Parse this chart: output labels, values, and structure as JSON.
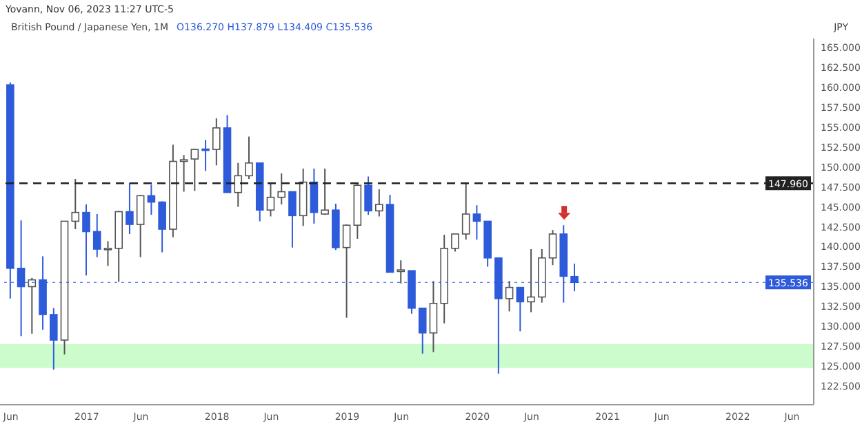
{
  "chart_data": {
    "type": "candlestick",
    "title": "British Pound / Japanese Yen, 1M",
    "ylabel": "JPY",
    "annotations": [
      "Yovann, Nov 06, 2023 11:27 UTC-5",
      "O136.270 H137.879 L134.409 C135.536"
    ],
    "x": [
      "2016-06",
      "2016-07",
      "2016-08",
      "2016-09",
      "2016-10",
      "2016-11",
      "2016-12",
      "2017-01",
      "2017-02",
      "2017-03",
      "2017-04",
      "2017-05",
      "2017-06",
      "2017-07",
      "2017-08",
      "2017-09",
      "2017-10",
      "2017-11",
      "2017-12",
      "2018-01",
      "2018-02",
      "2018-03",
      "2018-04",
      "2018-05",
      "2018-06",
      "2018-07",
      "2018-08",
      "2018-09",
      "2018-10",
      "2018-11",
      "2018-12",
      "2019-01",
      "2019-02",
      "2019-03",
      "2019-04",
      "2019-05",
      "2019-06",
      "2019-07",
      "2019-08",
      "2019-09",
      "2019-10",
      "2019-11",
      "2019-12",
      "2020-01",
      "2020-02",
      "2020-03",
      "2020-04",
      "2020-05",
      "2020-06",
      "2020-07",
      "2020-08",
      "2020-09",
      "2020-10"
    ],
    "ohlc": [
      [
        160.3,
        160.6,
        133.5,
        137.3
      ],
      [
        137.3,
        143.3,
        128.8,
        135.0
      ],
      [
        135.0,
        136.1,
        129.1,
        135.85
      ],
      [
        135.85,
        138.8,
        129.6,
        131.5
      ],
      [
        131.5,
        132.3,
        124.6,
        128.3
      ],
      [
        128.3,
        143.2,
        126.5,
        143.2
      ],
      [
        143.2,
        148.5,
        142.2,
        144.3
      ],
      [
        144.3,
        145.3,
        136.4,
        141.9
      ],
      [
        141.9,
        144.1,
        138.7,
        139.7
      ],
      [
        139.7,
        140.7,
        137.6,
        139.8
      ],
      [
        139.8,
        144.5,
        135.6,
        144.4
      ],
      [
        144.4,
        148.0,
        141.6,
        142.8
      ],
      [
        142.8,
        146.5,
        138.7,
        146.4
      ],
      [
        146.4,
        147.8,
        144.0,
        145.6
      ],
      [
        145.6,
        145.7,
        139.3,
        142.2
      ],
      [
        142.2,
        152.8,
        141.2,
        150.7
      ],
      [
        150.7,
        151.5,
        146.9,
        150.9
      ],
      [
        151.0,
        152.3,
        147.0,
        152.2
      ],
      [
        152.25,
        153.4,
        149.5,
        152.15
      ],
      [
        152.2,
        156.1,
        150.2,
        154.9
      ],
      [
        154.9,
        156.5,
        146.8,
        146.8
      ],
      [
        146.8,
        150.5,
        145.0,
        148.9
      ],
      [
        148.9,
        153.8,
        148.5,
        150.5
      ],
      [
        150.5,
        150.5,
        143.2,
        144.6
      ],
      [
        144.6,
        147.9,
        143.8,
        146.2
      ],
      [
        146.2,
        149.2,
        145.3,
        146.9
      ],
      [
        146.9,
        146.9,
        139.9,
        143.9
      ],
      [
        143.9,
        149.8,
        142.6,
        148.1
      ],
      [
        148.1,
        149.8,
        142.9,
        144.3
      ],
      [
        144.1,
        149.8,
        144.0,
        144.6
      ],
      [
        144.6,
        145.4,
        139.6,
        139.9
      ],
      [
        139.9,
        142.8,
        131.1,
        142.7
      ],
      [
        142.7,
        148.0,
        141.0,
        147.7
      ],
      [
        147.7,
        148.8,
        144.0,
        144.5
      ],
      [
        144.5,
        147.2,
        143.8,
        145.3
      ],
      [
        145.3,
        146.5,
        136.8,
        136.8
      ],
      [
        136.9,
        138.3,
        135.4,
        137.1
      ],
      [
        137.0,
        137.0,
        131.6,
        132.3
      ],
      [
        132.3,
        132.3,
        126.6,
        129.2
      ],
      [
        129.2,
        135.7,
        126.8,
        132.9
      ],
      [
        132.9,
        141.5,
        130.4,
        139.8
      ],
      [
        139.8,
        141.6,
        139.4,
        141.6
      ],
      [
        141.6,
        148.0,
        140.9,
        144.1
      ],
      [
        144.1,
        145.2,
        140.9,
        143.2
      ],
      [
        143.2,
        143.2,
        137.5,
        138.6
      ],
      [
        138.6,
        138.6,
        124.1,
        133.5
      ],
      [
        133.5,
        135.7,
        131.9,
        134.9
      ],
      [
        134.9,
        134.9,
        129.4,
        133.1
      ],
      [
        133.1,
        139.7,
        131.8,
        133.7
      ],
      [
        133.7,
        139.7,
        133.0,
        138.6
      ],
      [
        138.6,
        142.1,
        137.7,
        141.6
      ],
      [
        141.6,
        142.7,
        133.0,
        136.3
      ],
      [
        136.27,
        137.879,
        134.409,
        135.536
      ]
    ],
    "colors": [
      "#2e5bd9",
      "#2e5bd9",
      "#ffffff",
      "#2e5bd9",
      "#2e5bd9",
      "#ffffff",
      "#ffffff",
      "#2e5bd9",
      "#2e5bd9",
      "#ffffff",
      "#ffffff",
      "#2e5bd9",
      "#ffffff",
      "#2e5bd9",
      "#2e5bd9",
      "#ffffff",
      "#ffffff",
      "#ffffff",
      "#2e5bd9",
      "#ffffff",
      "#2e5bd9",
      "#ffffff",
      "#ffffff",
      "#2e5bd9",
      "#ffffff",
      "#ffffff",
      "#2e5bd9",
      "#ffffff",
      "#2e5bd9",
      "#ffffff",
      "#2e5bd9",
      "#ffffff",
      "#ffffff",
      "#2e5bd9",
      "#ffffff",
      "#2e5bd9",
      "#ffffff",
      "#2e5bd9",
      "#2e5bd9",
      "#ffffff",
      "#ffffff",
      "#ffffff",
      "#ffffff",
      "#2e5bd9",
      "#2e5bd9",
      "#2e5bd9",
      "#ffffff",
      "#2e5bd9",
      "#ffffff",
      "#ffffff",
      "#ffffff",
      "#2e5bd9",
      "#2e5bd9"
    ],
    "xlim": [
      "2016-05",
      "2022-08"
    ],
    "xticks": [
      {
        "value": "2016-06",
        "label": "Jun"
      },
      {
        "value": "2017-01",
        "label": "2017"
      },
      {
        "value": "2017-06",
        "label": "Jun"
      },
      {
        "value": "2018-01",
        "label": "2018"
      },
      {
        "value": "2018-06",
        "label": "Jun"
      },
      {
        "value": "2019-01",
        "label": "2019"
      },
      {
        "value": "2019-06",
        "label": "Jun"
      },
      {
        "value": "2020-01",
        "label": "2020"
      },
      {
        "value": "2020-06",
        "label": "Jun"
      },
      {
        "value": "2021-01",
        "label": "2021"
      },
      {
        "value": "2021-06",
        "label": "Jun"
      },
      {
        "value": "2022-01",
        "label": "2022"
      },
      {
        "value": "2022-06",
        "label": "Jun"
      }
    ],
    "ylim": [
      120.2,
      166.1
    ],
    "yticks": [
      {
        "value": 122.5,
        "label": "122.500"
      },
      {
        "value": 125,
        "label": "125.000"
      },
      {
        "value": 127.5,
        "label": "127.500"
      },
      {
        "value": 130,
        "label": "130.000"
      },
      {
        "value": 132.5,
        "label": "132.500"
      },
      {
        "value": 135,
        "label": "135.000"
      },
      {
        "value": 137.5,
        "label": "137.500"
      },
      {
        "value": 140,
        "label": "140.000"
      },
      {
        "value": 142.5,
        "label": "142.500"
      },
      {
        "value": 145,
        "label": "145.000"
      },
      {
        "value": 147.5,
        "label": "147.500"
      },
      {
        "value": 150,
        "label": "150.000"
      },
      {
        "value": 152.5,
        "label": "152.500"
      },
      {
        "value": 155,
        "label": "155.000"
      },
      {
        "value": 157.5,
        "label": "157.500"
      },
      {
        "value": 160,
        "label": "160.000"
      },
      {
        "value": 162.5,
        "label": "162.500"
      },
      {
        "value": 165,
        "label": "165.000"
      }
    ],
    "ref_lines": [
      {
        "axis": "y",
        "value": 147.96,
        "label": "147.960",
        "color": "#222222",
        "line_style": "dashed"
      },
      {
        "axis": "y",
        "value": 135.536,
        "label": "135.536",
        "color": "#2e5bd9",
        "line_style": "dotted"
      }
    ],
    "bands": [
      {
        "axis": "y",
        "from": 124.8,
        "to": 127.8,
        "color": "#ccfccc"
      }
    ],
    "grid": false
  }
}
